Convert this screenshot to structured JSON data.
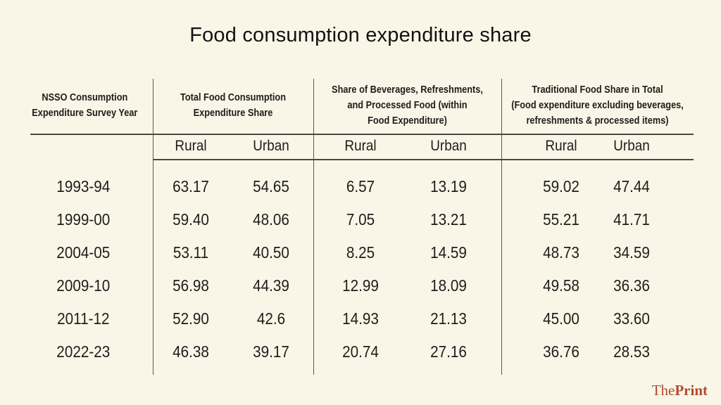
{
  "colors": {
    "background": "#f9f6e7",
    "text": "#1e1d1a",
    "rule_lines": "#55534a",
    "brand_red": "#b34a32"
  },
  "title": "Food consumption expenditure share",
  "table": {
    "headers": [
      "NSSO Consumption\nExpenditure Survey Year",
      "Total Food Consumption\nExpenditure Share",
      "Share of Beverages, Refreshments,\nand Processed Food (within\nFood Expenditure)",
      "Traditional Food Share in Total\n(Food expenditure excluding beverages,\nrefreshments & processed items)"
    ],
    "subheaders": {
      "rural": "Rural",
      "urban": "Urban"
    },
    "rows": [
      {
        "year": "1993-94",
        "cells": [
          "63.17",
          "54.65",
          "6.57",
          "13.19",
          "59.02",
          "47.44"
        ]
      },
      {
        "year": "1999-00",
        "cells": [
          "59.40",
          "48.06",
          "7.05",
          "13.21",
          "55.21",
          "41.71"
        ]
      },
      {
        "year": "2004-05",
        "cells": [
          "53.11",
          "40.50",
          "8.25",
          "14.59",
          "48.73",
          "34.59"
        ]
      },
      {
        "year": "2009-10",
        "cells": [
          "56.98",
          "44.39",
          "12.99",
          "18.09",
          "49.58",
          "36.36"
        ]
      },
      {
        "year": "2011-12",
        "cells": [
          "52.90",
          "42.6",
          "14.93",
          "21.13",
          "45.00",
          "33.60"
        ]
      },
      {
        "year": "2022-23",
        "cells": [
          "46.38",
          "39.17",
          "20.74",
          "27.16",
          "36.76",
          "28.53"
        ]
      }
    ]
  },
  "footer": {
    "brand_the": "The",
    "brand_print": "Print"
  },
  "chart_data": {
    "type": "table",
    "title": "Food consumption expenditure share",
    "row_label_header": "NSSO Consumption Expenditure Survey Year",
    "column_groups": [
      {
        "label": "Total Food Consumption Expenditure Share",
        "columns": [
          "Rural",
          "Urban"
        ]
      },
      {
        "label": "Share of Beverages, Refreshments, and Processed Food (within Food Expenditure)",
        "columns": [
          "Rural",
          "Urban"
        ]
      },
      {
        "label": "Traditional Food Share in Total (Food expenditure excluding beverages, refreshments & processed items)",
        "columns": [
          "Rural",
          "Urban"
        ]
      }
    ],
    "rows": [
      {
        "year": "1993-94",
        "values": [
          63.17,
          54.65,
          6.57,
          13.19,
          59.02,
          47.44
        ]
      },
      {
        "year": "1999-00",
        "values": [
          59.4,
          48.06,
          7.05,
          13.21,
          55.21,
          41.71
        ]
      },
      {
        "year": "2004-05",
        "values": [
          53.11,
          40.5,
          8.25,
          14.59,
          48.73,
          34.59
        ]
      },
      {
        "year": "2009-10",
        "values": [
          56.98,
          44.39,
          12.99,
          18.09,
          49.58,
          36.36
        ]
      },
      {
        "year": "2011-12",
        "values": [
          52.9,
          42.6,
          14.93,
          21.13,
          45.0,
          33.6
        ]
      },
      {
        "year": "2022-23",
        "values": [
          46.38,
          39.17,
          20.74,
          27.16,
          36.76,
          28.53
        ]
      }
    ],
    "source_brand": "ThePrint"
  }
}
